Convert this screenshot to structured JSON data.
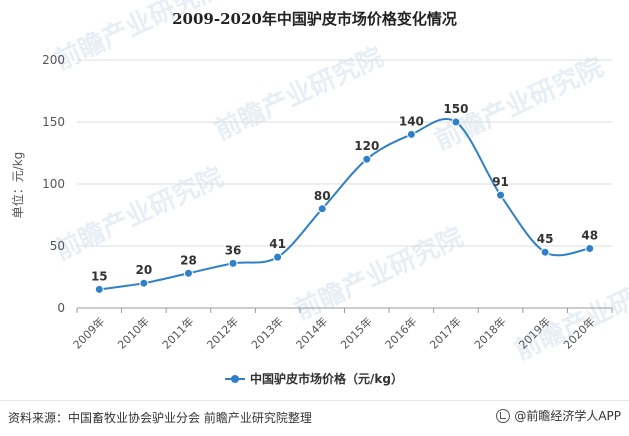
{
  "page": {
    "source_text": "资料来源：中国畜牧业协会驴业分会 前瞻产业研究院整理",
    "brand_text": "@前瞻经济学人APP",
    "watermark_text": "前瞻产业研究院",
    "icons": {
      "brand": "qianzhan-logo-icon"
    }
  },
  "chart_data": {
    "type": "line",
    "title": "2009-2020年中国驴皮市场价格变化情况",
    "xlabel": "",
    "ylabel": "单位：元/kg",
    "categories": [
      "2009年",
      "2010年",
      "2011年",
      "2012年",
      "2013年",
      "2014年",
      "2015年",
      "2016年",
      "2017年",
      "2018年",
      "2019年",
      "2020年"
    ],
    "series": [
      {
        "name": "中国驴皮市场价格（元/kg）",
        "values": [
          15,
          20,
          28,
          36,
          41,
          80,
          120,
          140,
          150,
          91,
          45,
          48
        ]
      }
    ],
    "ylim": [
      0,
      200
    ],
    "yticks": [
      0,
      50,
      100,
      150,
      200
    ],
    "grid": true,
    "legend_position": "bottom-center",
    "smooth": true,
    "colors": {
      "line": "#2f80c8",
      "grid": "#dddddd",
      "axis": "#999999",
      "watermark": "#c9d9ea"
    }
  }
}
